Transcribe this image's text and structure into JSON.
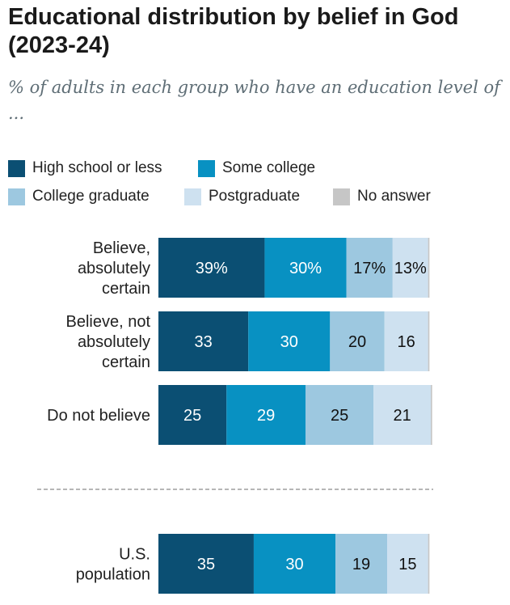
{
  "title": "Educational distribution by belief in God (2023-24)",
  "subtitle": "% of adults in each group who have an education level of ...",
  "legend": [
    {
      "label": "High school or less",
      "color": "#0b4f73"
    },
    {
      "label": "Some college",
      "color": "#0891c2"
    },
    {
      "label": "College graduate",
      "color": "#9dc8e0"
    },
    {
      "label": "Postgraduate",
      "color": "#cee1f0"
    },
    {
      "label": "No answer",
      "color": "#c6c6c6"
    }
  ],
  "chart_data": {
    "type": "bar",
    "orientation": "horizontal",
    "stacked": true,
    "categories": [
      [
        "Believe,",
        "absolutely",
        "certain"
      ],
      [
        "Believe, not",
        "absolutely",
        "certain"
      ],
      [
        "Do not believe"
      ],
      [
        "U.S.",
        "population"
      ]
    ],
    "series": [
      {
        "name": "High school or less",
        "color": "#0b4f73",
        "values": [
          39,
          33,
          25,
          35
        ],
        "labels": [
          "39%",
          "33",
          "25",
          "35"
        ],
        "label_color": "#ffffff"
      },
      {
        "name": "Some college",
        "color": "#0891c2",
        "values": [
          30,
          30,
          29,
          30
        ],
        "labels": [
          "30%",
          "30",
          "29",
          "30"
        ],
        "label_color": "#ffffff"
      },
      {
        "name": "College graduate",
        "color": "#9dc8e0",
        "values": [
          17,
          20,
          25,
          19
        ],
        "labels": [
          "17%",
          "20",
          "25",
          "19"
        ],
        "label_color": "#111111"
      },
      {
        "name": "Postgraduate",
        "color": "#cee1f0",
        "values": [
          13,
          16,
          21,
          15
        ],
        "labels": [
          "13%",
          "16",
          "21",
          "15"
        ],
        "label_color": "#111111"
      },
      {
        "name": "No answer",
        "color": "#c6c6c6",
        "values": [
          0.5,
          0.5,
          0.5,
          0.5
        ],
        "labels": [
          "",
          "",
          "",
          ""
        ],
        "label_color": "#111111"
      }
    ],
    "xlim": [
      0,
      100
    ],
    "separator_before_category": 3,
    "legend_position": "top-left",
    "grid": false
  }
}
